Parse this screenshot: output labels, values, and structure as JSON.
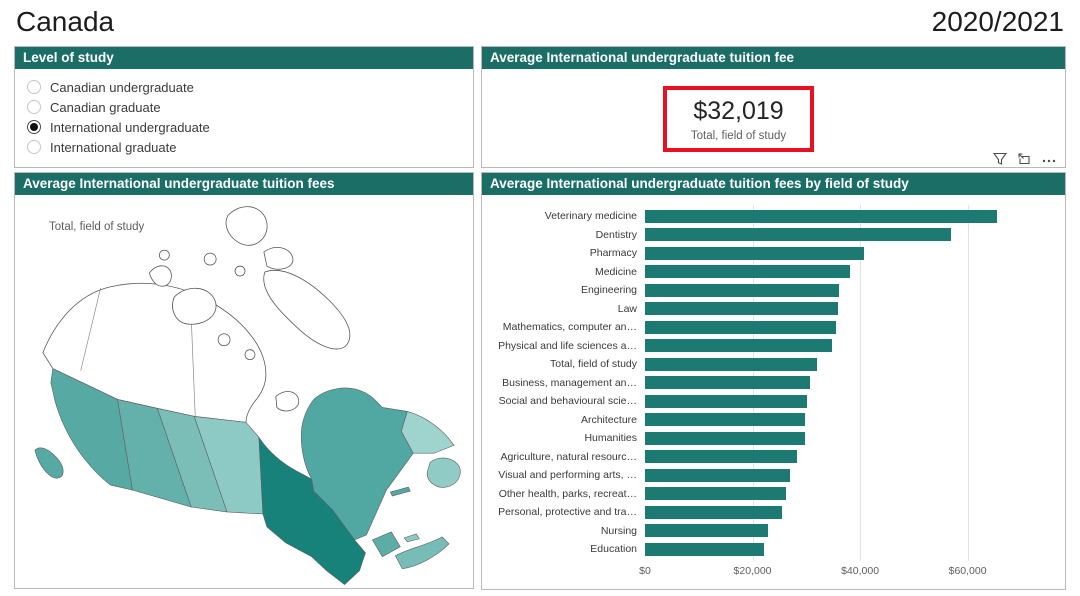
{
  "page": {
    "title": "Canada",
    "period": "2020/2021"
  },
  "colors": {
    "header_bg": "#1a6e66",
    "bar": "#1d7a73",
    "highlight_red": "#e81123",
    "panel_border": "#b9b9b9"
  },
  "level_of_study": {
    "header": "Level of study",
    "options": [
      {
        "label": "Canadian undergraduate",
        "selected": false
      },
      {
        "label": "Canadian graduate",
        "selected": false
      },
      {
        "label": "International undergraduate",
        "selected": true
      },
      {
        "label": "International graduate",
        "selected": false
      }
    ]
  },
  "fee_card": {
    "header": "Average International undergraduate tuition fee",
    "value": "$32,019",
    "caption": "Total, field of study"
  },
  "visual_toolbar": {
    "icons": [
      {
        "name": "filter-funnel-icon"
      },
      {
        "name": "focus-mode-icon"
      },
      {
        "name": "more-options-icon"
      }
    ]
  },
  "map_panel": {
    "header": "Average International undergraduate tuition fees",
    "annotation": "Total, field of study",
    "regions": [
      {
        "name": "territories",
        "color": "#ffffff"
      },
      {
        "name": "arctic-islands",
        "color": "#ffffff"
      },
      {
        "name": "british-columbia",
        "color": "#57a9a3"
      },
      {
        "name": "vancouver-island",
        "color": "#57a9a3"
      },
      {
        "name": "alberta",
        "color": "#64b1ab"
      },
      {
        "name": "saskatchewan",
        "color": "#7bbeb8"
      },
      {
        "name": "manitoba",
        "color": "#8ecac5"
      },
      {
        "name": "ontario",
        "color": "#17827a"
      },
      {
        "name": "quebec",
        "color": "#51a7a1"
      },
      {
        "name": "labrador",
        "color": "#9fd3ce"
      },
      {
        "name": "newfoundland",
        "color": "#90cbc6"
      },
      {
        "name": "new-brunswick",
        "color": "#5dada7"
      },
      {
        "name": "nova-scotia",
        "color": "#77bcb6"
      },
      {
        "name": "prince-edward-island",
        "color": "#8ecac5"
      },
      {
        "name": "anticosti-island",
        "color": "#51a7a1"
      }
    ]
  },
  "chart_data": {
    "type": "bar",
    "orientation": "horizontal",
    "title": "Average International undergraduate tuition fees by field of study",
    "categories": [
      "Veterinary medicine",
      "Dentistry",
      "Pharmacy",
      "Medicine",
      "Engineering",
      "Law",
      "Mathematics, computer an…",
      "Physical and life sciences a…",
      "Total, field of study",
      "Business, management an…",
      "Social and behavioural scie…",
      "Architecture",
      "Humanities",
      "Agriculture, natural resourc…",
      "Visual and performing arts, …",
      "Other health, parks, recreat…",
      "Personal, protective and tra…",
      "Nursing",
      "Education"
    ],
    "values": [
      65500,
      57000,
      40700,
      38100,
      36100,
      35900,
      35500,
      34700,
      32019,
      30700,
      30100,
      29800,
      29700,
      28250,
      27000,
      26200,
      25400,
      22850,
      22050
    ],
    "x_tick_labels": [
      "$0",
      "$20,000",
      "$40,000",
      "$60,000"
    ],
    "x_tick_values": [
      0,
      20000,
      40000,
      60000
    ],
    "xlim": [
      0,
      77000
    ],
    "xlabel": "",
    "ylabel": "",
    "grid": "vertical-only",
    "legend": "none"
  }
}
